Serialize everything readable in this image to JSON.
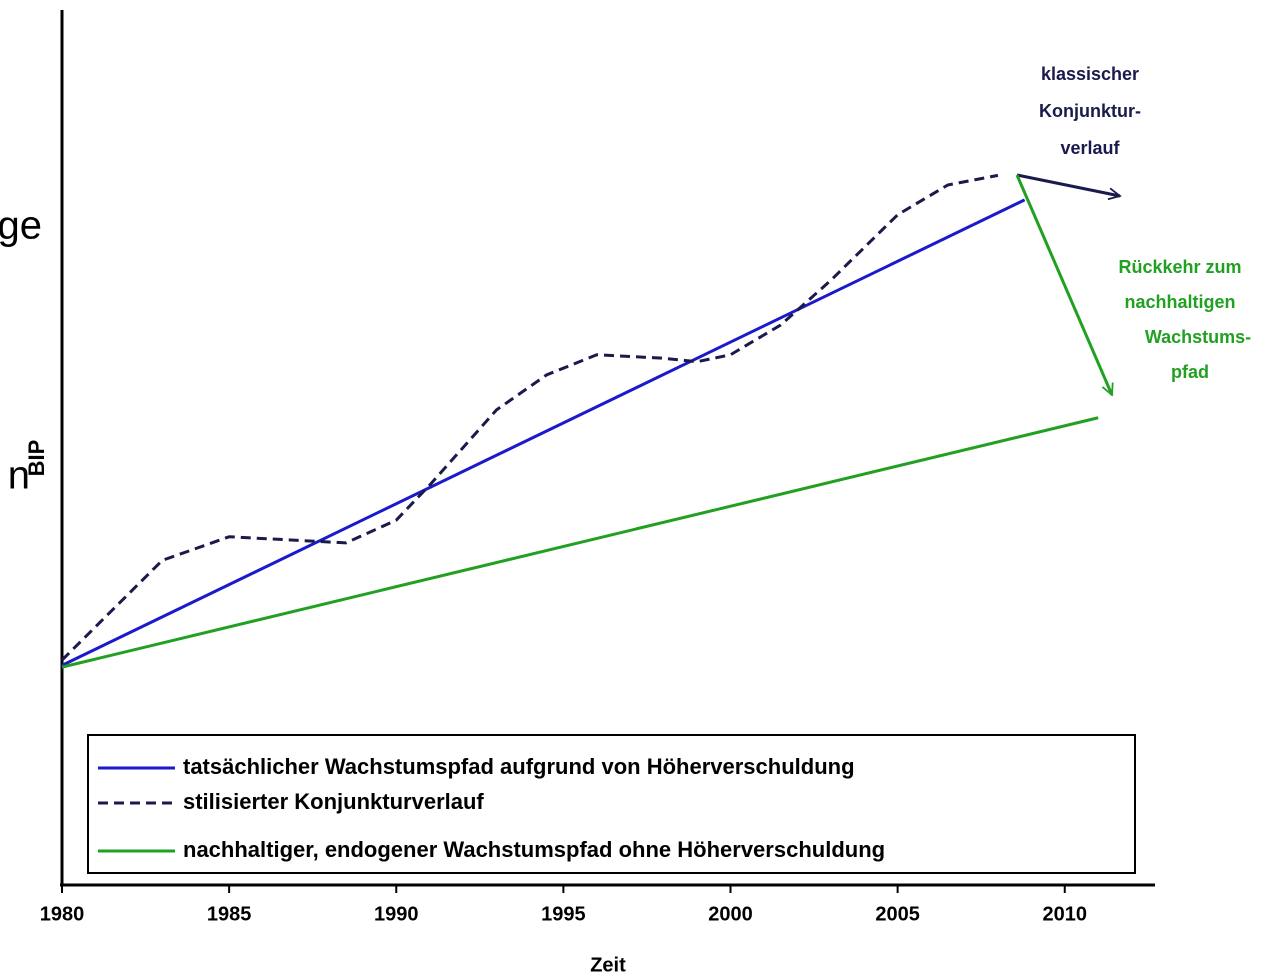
{
  "chart_data": {
    "type": "line",
    "y_label_fragments": [
      "ge",
      "n",
      "BIP"
    ],
    "xlabel": "Zeit",
    "xlim": [
      1980,
      2012.7
    ],
    "xticks": [
      1980,
      1985,
      1990,
      1995,
      2000,
      2005,
      2010
    ],
    "ylim": [
      0,
      100
    ],
    "legend": "bottom",
    "series": [
      {
        "name": "tatsächlicher Wachstumspfad aufgrund von Höherverschuldung",
        "color": "#1a1acc",
        "dash": false,
        "x": [
          1980,
          2008.8
        ],
        "values": [
          25.1,
          78.3
        ]
      },
      {
        "name": "stilisierter Konjunkturverlauf",
        "color": "#1a1a4d",
        "dash": true,
        "x": [
          1980,
          1983,
          1985,
          1987,
          1988.5,
          1990,
          1991,
          1993,
          1994.5,
          1996,
          1998,
          1999,
          2000,
          2001.5,
          2003,
          2005,
          2006.5,
          2008
        ],
        "values": [
          25.7,
          37.1,
          39.8,
          39.4,
          39.1,
          41.7,
          45.7,
          54.3,
          58.3,
          60.6,
          60.2,
          59.8,
          60.6,
          64,
          69.1,
          76.6,
          80,
          81.1
        ]
      },
      {
        "name": "nachhaltiger, endogener Wachstumspfad ohne Höherverschuldung",
        "color": "#22a022",
        "dash": false,
        "x": [
          1980,
          2011
        ],
        "values": [
          24.9,
          53.4
        ]
      }
    ],
    "annotations": [
      {
        "lines": [
          "klassischer",
          "Konjunktur-",
          "verlauf"
        ],
        "color": "#1a1a4d"
      },
      {
        "lines": [
          "Rückkehr zum",
          "nachhaltigen",
          "Wachstums-",
          "pfad"
        ],
        "color": "#22a022"
      }
    ]
  }
}
